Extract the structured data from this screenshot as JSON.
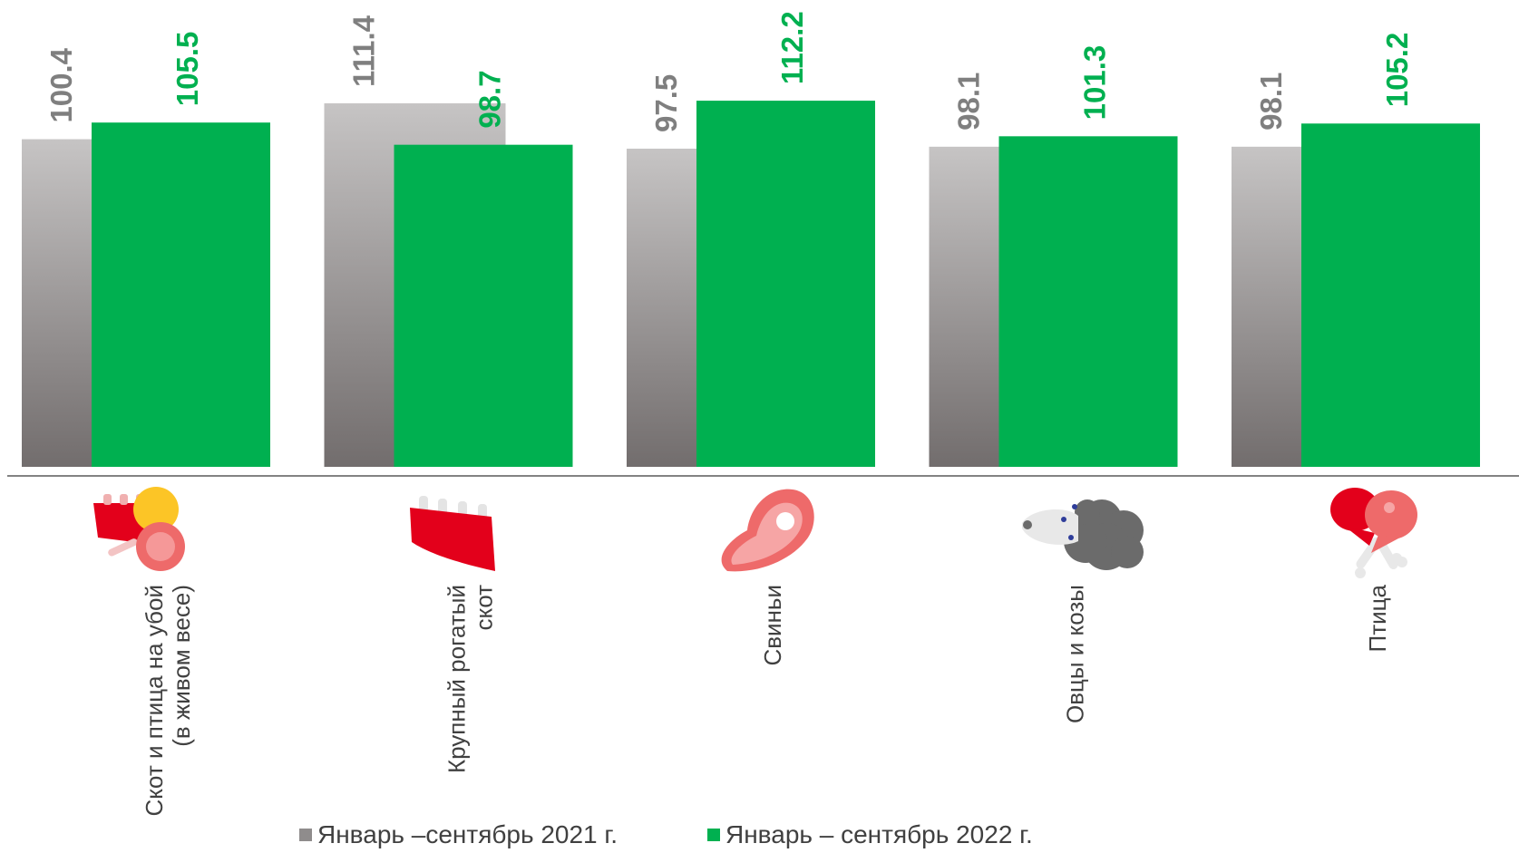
{
  "chart_data": {
    "type": "bar",
    "categories": [
      [
        "Скот и птица на убой",
        "(в живом весе)"
      ],
      [
        "Крупный рогатый",
        "скот"
      ],
      [
        "Свиньи"
      ],
      [
        "Овцы и козы"
      ],
      [
        "Птица"
      ]
    ],
    "category_icons": [
      "meat-poultry-icon",
      "beef-ribs-icon",
      "pork-steak-icon",
      "sheep-icon",
      "poultry-drumstick-icon"
    ],
    "series": [
      {
        "name": "Январь –сентябрь 2021 г.",
        "values": [
          100.4,
          111.4,
          97.5,
          98.1,
          98.1
        ],
        "color": "#8f8c8c",
        "label_color": "#7f7f7f"
      },
      {
        "name": "Январь – сентябрь 2022 г.",
        "values": [
          105.5,
          98.7,
          112.2,
          101.3,
          105.2
        ],
        "color": "#00b050",
        "label_color": "#00b050"
      }
    ],
    "legend_position": "bottom",
    "grid": false
  },
  "colors": {
    "gray_top": "#c6c4c4",
    "gray_bottom": "#726d6d",
    "green": "#00b050",
    "axis": "#595959",
    "category_text": "#404040",
    "icon_red": "#e3001b",
    "icon_pink": "#ee6a6a",
    "icon_yellow": "#fcc526",
    "icon_sheep": "#6b6b6b"
  }
}
